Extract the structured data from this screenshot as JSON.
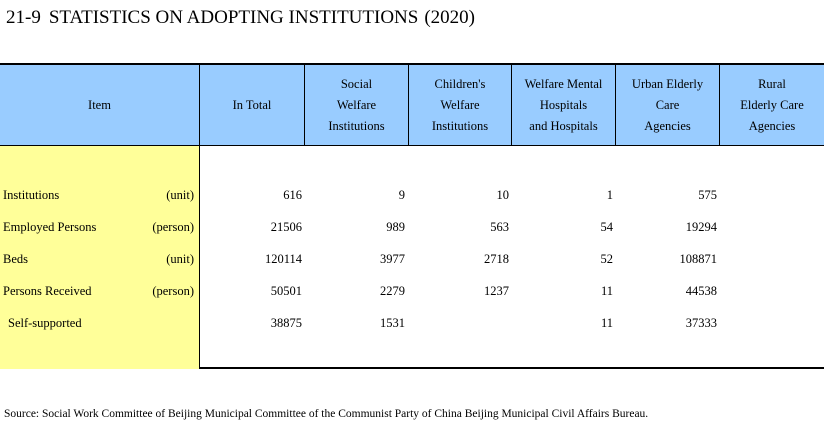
{
  "title": {
    "number": "21-9",
    "text": "STATISTICS ON ADOPTING INSTITUTIONS",
    "year": "(2020)"
  },
  "table": {
    "headers": {
      "item": "Item",
      "total": "In Total",
      "social": [
        "Social",
        "Welfare",
        "Institutions"
      ],
      "children": [
        "Children's",
        "Welfare",
        "Institutions"
      ],
      "mental": [
        "Welfare Mental",
        "Hospitals",
        "and Hospitals"
      ],
      "urban": [
        "Urban Elderly",
        "Care",
        "Agencies"
      ],
      "rural": [
        "Rural",
        "Elderly Care",
        "Agencies"
      ]
    },
    "rows": [
      {
        "label": "Institutions",
        "unit": "(unit)",
        "values": [
          "616",
          "9",
          "10",
          "1",
          "575",
          ""
        ]
      },
      {
        "label": "Employed Persons",
        "unit": "(person)",
        "values": [
          "21506",
          "989",
          "563",
          "54",
          "19294",
          ""
        ]
      },
      {
        "label": "Beds",
        "unit": "(unit)",
        "values": [
          "120114",
          "3977",
          "2718",
          "52",
          "108871",
          ""
        ]
      },
      {
        "label": "Persons Received",
        "unit": "(person)",
        "values": [
          "50501",
          "2279",
          "1237",
          "11",
          "44538",
          ""
        ]
      },
      {
        "label": "Self-supported",
        "unit": "",
        "values": [
          "38875",
          "1531",
          "",
          "11",
          "37333",
          ""
        ]
      }
    ]
  },
  "colors": {
    "header_bg": "#99ccff",
    "stub_bg": "#ffff99"
  },
  "source": "Source: Social Work Committee of Beijing Municipal Committee of the Communist Party of China Beijing Municipal Civil Affairs Bureau."
}
